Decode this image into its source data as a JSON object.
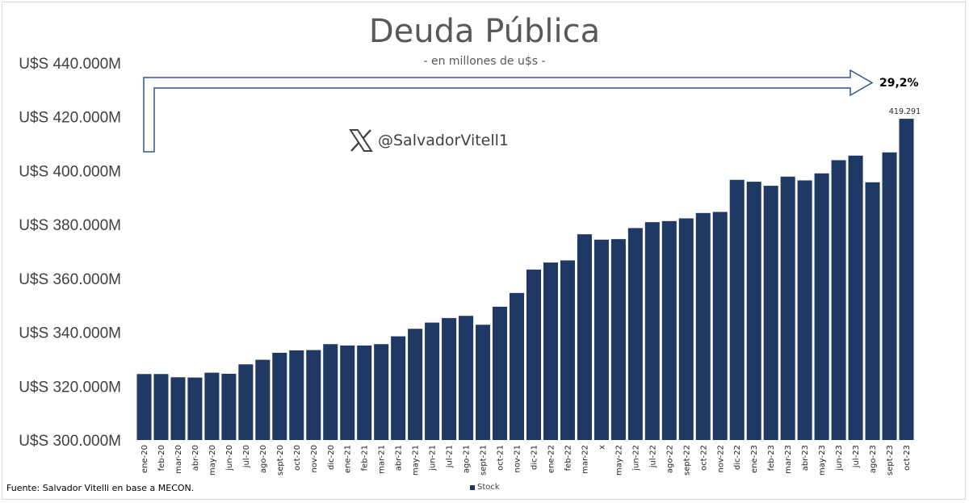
{
  "header": {
    "title": "Deuda Pública",
    "subtitle": "- en millones de u$s -"
  },
  "watermark": {
    "icon": "x-logo-icon",
    "handle": "@SalvadorVitell1"
  },
  "annotation": {
    "growth_label": "29,2%",
    "last_value_label": "419.291"
  },
  "footer": {
    "source": "Fuente: Salvador Vitelli en base a MECON.",
    "legend_label": "Stock"
  },
  "colors": {
    "bar": "#1f3864",
    "arrow_stroke": "#2f5597",
    "text": "#404040"
  },
  "chart_data": {
    "type": "bar",
    "title": "Deuda Pública",
    "subtitle": "- en millones de u$s -",
    "xlabel": "",
    "ylabel": "",
    "ylim": [
      300000,
      440000
    ],
    "y_ticks": [
      300000,
      320000,
      340000,
      360000,
      380000,
      400000,
      420000,
      440000
    ],
    "y_tick_labels": [
      "U$S 300.000M",
      "U$S 320.000M",
      "U$S 340.000M",
      "U$S 360.000M",
      "U$S 380.000M",
      "U$S 400.000M",
      "U$S 420.000M",
      "U$S 440.000M"
    ],
    "grid": false,
    "legend": "bottom",
    "categories": [
      "ene-20",
      "feb-20",
      "mar-20",
      "abr-20",
      "may-20",
      "jun-20",
      "jul-20",
      "ago-20",
      "sept-20",
      "oct-20",
      "nov-20",
      "dic-20",
      "ene-21",
      "feb-21",
      "mar-21",
      "abr-21",
      "may-21",
      "jun-21",
      "jul-21",
      "ago-21",
      "sept-21",
      "oct-21",
      "nov-21",
      "dic-21",
      "ene-22",
      "feb-22",
      "mar-22",
      "x",
      "may-22",
      "jun-22",
      "jul-22",
      "ago-22",
      "sept-22",
      "oct-22",
      "nov-22",
      "dic-22",
      "ene-23",
      "feb-23",
      "mar-23",
      "abr-23",
      "may-23",
      "jun-23",
      "jul-23",
      "ago-23",
      "sept-23",
      "oct-23"
    ],
    "series": [
      {
        "name": "Stock",
        "values": [
          324500,
          324500,
          323300,
          323200,
          325000,
          324600,
          328100,
          329800,
          332400,
          333300,
          333400,
          335600,
          335100,
          335100,
          335600,
          338500,
          341300,
          343600,
          345300,
          346100,
          342800,
          349500,
          354600,
          363300,
          365900,
          366700,
          376400,
          374400,
          374600,
          378700,
          380900,
          381300,
          382300,
          384300,
          384700,
          396600,
          395900,
          394400,
          397800,
          396400,
          399000,
          403900,
          405600,
          395700,
          406800,
          419291
        ]
      }
    ],
    "data_labels": [
      {
        "category": "oct-23",
        "text": "419.291"
      }
    ]
  }
}
